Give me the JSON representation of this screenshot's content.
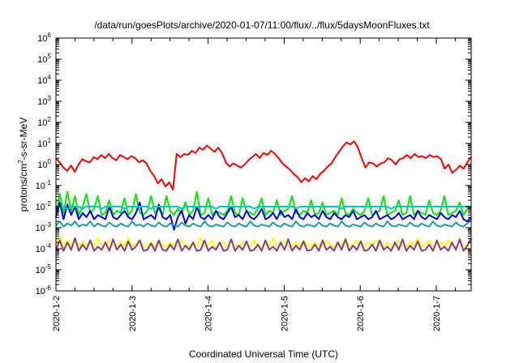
{
  "chart_data": {
    "type": "line",
    "title": "/data/run/goesPlots/archive/2020-01-07/11:00/flux/../flux/5daysMoonFluxes.txt",
    "xlabel": "Coordinated Universal Time (UTC)",
    "ylabel_parts": {
      "pre": "protons/cm",
      "sup": "2",
      "post": "-s-sr-MeV"
    },
    "y_scale": "log",
    "ylim_exponents": [
      -6,
      6
    ],
    "y_ticks": [
      {
        "base": "10",
        "exp": "6"
      },
      {
        "base": "10",
        "exp": "5"
      },
      {
        "base": "10",
        "exp": "4"
      },
      {
        "base": "10",
        "exp": "3"
      },
      {
        "base": "10",
        "exp": "2"
      },
      {
        "base": "10",
        "exp": "1"
      },
      {
        "base": "10",
        "exp": "0"
      },
      {
        "base": "10",
        "exp": "-1"
      },
      {
        "base": "10",
        "exp": "-2"
      },
      {
        "base": "10",
        "exp": "-3"
      },
      {
        "base": "10",
        "exp": "-4"
      },
      {
        "base": "10",
        "exp": "-5"
      },
      {
        "base": "10",
        "exp": "-6"
      }
    ],
    "x_range_days": [
      "2020-01-02",
      "2020-01-07 11:00"
    ],
    "x_ticks": [
      "2020-1-2",
      "2020-1-3",
      "2020-1-4",
      "2020-1-5",
      "2020-1-6",
      "2020-1-7"
    ],
    "grid": false,
    "legend": "none",
    "series": [
      {
        "color": "#ff0000",
        "values_log10": [
          0.3,
          0.1,
          -0.15,
          -0.3,
          -0.05,
          -0.35,
          0.0,
          0.25,
          0.15,
          0.1,
          0.35,
          0.25,
          0.45,
          0.3,
          0.5,
          0.3,
          0.2,
          0.45,
          0.35,
          0.25,
          0.4,
          0.3,
          0.1,
          0.2,
          0.05,
          -0.3,
          -0.55,
          -0.9,
          -0.7,
          -1.05,
          -0.85,
          -1.2,
          0.5,
          0.35,
          0.5,
          0.45,
          0.65,
          0.55,
          0.8,
          0.7,
          0.9,
          0.75,
          0.6,
          0.8,
          0.55,
          0.1,
          -0.1,
          0.05,
          -0.05,
          -0.15,
          0.0,
          0.2,
          0.35,
          0.5,
          0.3,
          0.55,
          0.45,
          0.65,
          0.5,
          0.3,
          0.05,
          -0.1,
          -0.25,
          -0.45,
          -0.6,
          -0.85,
          -0.65,
          -0.8,
          -0.55,
          -0.7,
          -0.45,
          -0.3,
          -0.1,
          0.05,
          0.35,
          0.6,
          0.85,
          1.05,
          0.95,
          1.1,
          0.8,
          0.3,
          -0.15,
          0.1,
          0.05,
          -0.1,
          0.05,
          0.1,
          0.3,
          0.2,
          0.0,
          0.25,
          0.3,
          0.45,
          0.3,
          0.5,
          0.35,
          0.4,
          0.3,
          0.45,
          0.35,
          0.4,
          0.25,
          -0.2,
          0.0,
          -0.4,
          -0.25,
          -0.05,
          -0.2,
          0.1,
          0.35
        ]
      },
      {
        "color": "#00ee00",
        "values_log10": [
          -2.4,
          -1.4,
          -2.3,
          -1.3,
          -2.2,
          -1.5,
          -2.4,
          -2.0,
          -1.4,
          -2.3,
          -2.1,
          -1.5,
          -2.4,
          -2.3,
          -1.7,
          -2.4,
          -2.2,
          -2.3,
          -1.6,
          -2.4,
          -2.2,
          -1.4,
          -2.3,
          -2.4,
          -2.2,
          -1.5,
          -2.3,
          -2.1,
          -2.4,
          -1.5,
          -2.2,
          -2.4,
          -2.1,
          -2.3,
          -1.8,
          -2.4,
          -2.2,
          -1.3,
          -2.4,
          -2.3,
          -1.6,
          -2.4,
          -2.2,
          -2.3,
          -2.4,
          -2.2,
          -1.5,
          -2.3,
          -2.4,
          -1.6,
          -2.2,
          -2.3,
          -2.4,
          -2.1,
          -1.6,
          -2.4,
          -2.2,
          -2.3,
          -1.7,
          -2.4,
          -2.2,
          -2.1,
          -1.5,
          -2.3,
          -2.4,
          -2.2,
          -2.3,
          -1.7,
          -2.4,
          -2.3,
          -1.8,
          -2.4,
          -2.3,
          -2.2,
          -2.4,
          -1.6,
          -2.3,
          -2.4,
          -2.1,
          -2.3,
          -2.4,
          -2.2,
          -1.6,
          -2.4,
          -2.3,
          -2.2,
          -1.5,
          -2.4,
          -2.3,
          -2.2,
          -1.7,
          -2.4,
          -2.3,
          -1.5,
          -2.4,
          -2.2,
          -2.3,
          -2.4,
          -1.7,
          -2.3,
          -2.4,
          -2.2,
          -1.5,
          -2.4,
          -2.3,
          -2.2,
          -1.8,
          -2.4,
          -2.1,
          -2.0
        ]
      },
      {
        "color": "#0000ee",
        "values_log10": [
          -2.5,
          -1.8,
          -2.6,
          -1.9,
          -2.4,
          -2.0,
          -2.6,
          -2.3,
          -2.5,
          -2.2,
          -2.6,
          -2.4,
          -2.5,
          -2.6,
          -2.0,
          -2.5,
          -2.6,
          -2.4,
          -2.2,
          -2.5,
          -2.6,
          -2.3,
          -1.8,
          -2.6,
          -2.5,
          -2.4,
          -2.6,
          -1.9,
          -2.5,
          -2.6,
          -2.4,
          -3.1,
          -2.5,
          -2.2,
          -2.8,
          -2.4,
          -2.6,
          -2.0,
          -2.5,
          -2.6,
          -2.4,
          -2.6,
          -2.2,
          -2.5,
          -2.6,
          -2.3,
          -2.0,
          -2.5,
          -2.4,
          -2.6,
          -2.2,
          -2.5,
          -2.6,
          -2.4,
          -2.1,
          -2.6,
          -2.5,
          -2.3,
          -2.6,
          -2.2,
          -2.5,
          -2.4,
          -2.6,
          -2.1,
          -2.5,
          -2.6,
          -2.3,
          -2.5,
          -2.4,
          -2.6,
          -2.2,
          -2.5,
          -2.6,
          -2.3,
          -2.5,
          -2.6,
          -2.4,
          -2.5,
          -2.2,
          -2.6,
          -2.5,
          -2.4,
          -2.6,
          -2.5,
          -2.2,
          -2.6,
          -2.5,
          -2.4,
          -2.6,
          -2.5,
          -2.3,
          -2.6,
          -2.5,
          -2.4,
          -2.6,
          -2.2,
          -2.5,
          -2.6,
          -2.4,
          -2.5,
          -2.6,
          -2.3,
          -2.5,
          -2.6,
          -2.4,
          -2.5,
          -2.2,
          -2.6,
          -2.7,
          -2.5
        ]
      },
      {
        "color": "#00c8c8",
        "values_log10": [
          -2.0,
          -2.0,
          -2.0,
          -2.1,
          -2.0,
          -2.0,
          -2.0,
          -2.1,
          -2.0,
          -2.0,
          -2.0,
          -2.0,
          -2.1,
          -2.0,
          -2.0,
          -2.0,
          -2.0,
          -2.0,
          -2.1,
          -2.0,
          -2.0,
          -2.0,
          -2.0,
          -2.0,
          -2.0,
          -2.1,
          -2.0,
          -2.0,
          -2.0,
          -2.0,
          -2.0,
          -2.0,
          -2.0,
          -2.1,
          -2.0,
          -2.0,
          -2.0,
          -2.0,
          -2.0,
          -2.0,
          -2.0,
          -2.0,
          -2.1,
          -2.0,
          -2.0,
          -2.0,
          -2.0,
          -2.0,
          -2.0,
          -2.0,
          -2.0,
          -2.0,
          -2.1,
          -2.0,
          -2.0,
          -2.0,
          -2.0,
          -2.0,
          -2.0,
          -2.0,
          -2.0,
          -2.0,
          -2.0,
          -2.1,
          -2.0,
          -2.0,
          -2.0,
          -2.0,
          -2.0,
          -2.0,
          -2.0,
          -2.0,
          -2.0,
          -2.0,
          -2.0,
          -2.1,
          -2.0,
          -2.0,
          -2.0,
          -2.0,
          -2.0,
          -2.0,
          -2.0,
          -2.0,
          -2.0,
          -2.0,
          -2.0,
          -2.0,
          -2.1,
          -2.0,
          -2.0,
          -2.0,
          -2.0,
          -2.0,
          -2.0,
          -2.0,
          -2.0,
          -2.0,
          -2.0,
          -2.0,
          -2.0,
          -2.0,
          -2.0,
          -2.0,
          -2.0,
          -2.0,
          -2.0,
          -2.0,
          -2.0,
          -2.0
        ]
      },
      {
        "color": "#1a9e9e",
        "values_log10": [
          -2.9,
          -2.7,
          -2.95,
          -2.8,
          -2.9,
          -2.7,
          -2.95,
          -2.85,
          -2.9,
          -2.7,
          -2.95,
          -2.8,
          -2.9,
          -2.95,
          -2.75,
          -2.9,
          -2.95,
          -2.8,
          -2.9,
          -2.95,
          -2.7,
          -2.9,
          -2.85,
          -2.95,
          -2.8,
          -2.9,
          -2.95,
          -2.75,
          -2.9,
          -2.95,
          -2.8,
          -2.9,
          -2.95,
          -2.75,
          -2.9,
          -2.95,
          -2.8,
          -2.9,
          -2.95,
          -2.7,
          -2.9,
          -2.95,
          -2.85,
          -2.9,
          -2.95,
          -2.75,
          -2.9,
          -2.95,
          -2.8,
          -2.9,
          -2.95,
          -2.7,
          -2.9,
          -2.95,
          -2.85,
          -2.9,
          -2.95,
          -2.75,
          -2.9,
          -2.95,
          -2.8,
          -2.9,
          -2.95,
          -2.7,
          -2.9,
          -2.95,
          -2.85,
          -2.9,
          -2.95,
          -2.75,
          -2.9,
          -2.95,
          -2.8,
          -2.9,
          -2.95,
          -2.7,
          -2.9,
          -2.95,
          -2.85,
          -2.9,
          -2.95,
          -2.75,
          -2.9,
          -2.95,
          -2.8,
          -2.9,
          -2.95,
          -2.7,
          -2.9,
          -2.95,
          -2.85,
          -2.9,
          -2.95,
          -2.75,
          -2.9,
          -2.95,
          -2.8,
          -2.9,
          -2.95,
          -2.7,
          -2.9,
          -2.95,
          -2.85,
          -2.9,
          -2.95,
          -2.75,
          -2.9,
          -2.95,
          -2.8,
          -2.6
        ]
      },
      {
        "color": "#ffff00",
        "values_log10": [
          -3.8,
          -3.4,
          -3.9,
          -3.6,
          -3.85,
          -3.5,
          -3.9,
          -3.7,
          -3.85,
          -3.6,
          -3.9,
          -3.5,
          -3.85,
          -3.9,
          -3.6,
          -3.85,
          -3.9,
          -3.7,
          -3.85,
          -3.5,
          -3.9,
          -3.8,
          -3.6,
          -3.9,
          -3.85,
          -3.7,
          -3.9,
          -3.6,
          -3.85,
          -3.9,
          -3.7,
          -3.85,
          -3.9,
          -3.6,
          -3.85,
          -3.9,
          -3.7,
          -3.85,
          -3.5,
          -3.9,
          -3.8,
          -3.6,
          -3.9,
          -3.85,
          -3.7,
          -3.9,
          -3.6,
          -3.85,
          -3.9,
          -3.7,
          -3.85,
          -3.9,
          -3.6,
          -3.85,
          -3.9,
          -3.7,
          -3.85,
          -3.5,
          -3.9,
          -3.8,
          -3.6,
          -3.9,
          -3.85,
          -3.7,
          -3.9,
          -3.6,
          -3.85,
          -3.9,
          -3.7,
          -3.85,
          -3.9,
          -3.6,
          -3.85,
          -3.9,
          -3.7,
          -3.85,
          -3.5,
          -3.9,
          -3.8,
          -3.6,
          -3.9,
          -3.85,
          -3.7,
          -3.9,
          -3.6,
          -3.85,
          -3.9,
          -3.7,
          -3.85,
          -3.9,
          -3.6,
          -3.85,
          -3.9,
          -3.7,
          -3.85,
          -3.5,
          -3.9,
          -3.8,
          -3.6,
          -3.9,
          -3.85,
          -3.7,
          -3.9,
          -3.6,
          -3.85,
          -3.9,
          -3.7,
          -3.85,
          -3.9,
          -3.6
        ]
      },
      {
        "color": "#8b3a8b",
        "values_log10": [
          -4.05,
          -3.6,
          -4.1,
          -3.7,
          -4.05,
          -3.5,
          -4.1,
          -3.8,
          -4.05,
          -3.6,
          -4.1,
          -3.9,
          -4.05,
          -3.7,
          -4.1,
          -3.55,
          -4.05,
          -3.8,
          -4.1,
          -3.65,
          -4.05,
          -3.9,
          -3.6,
          -4.1,
          -4.05,
          -3.75,
          -4.1,
          -3.6,
          -4.05,
          -4.1,
          -3.8,
          -4.05,
          -3.55,
          -4.1,
          -3.85,
          -4.05,
          -3.7,
          -4.1,
          -4.05,
          -3.6,
          -4.1,
          -3.9,
          -4.05,
          -3.7,
          -4.1,
          -4.05,
          -3.55,
          -4.1,
          -3.85,
          -4.05,
          -3.65,
          -4.1,
          -4.05,
          -3.8,
          -4.1,
          -3.6,
          -4.05,
          -3.9,
          -4.1,
          -3.7,
          -4.05,
          -3.55,
          -4.1,
          -3.85,
          -4.05,
          -3.65,
          -4.1,
          -4.05,
          -3.8,
          -4.1,
          -3.6,
          -4.05,
          -3.9,
          -4.1,
          -3.7,
          -4.05,
          -3.55,
          -4.1,
          -3.85,
          -4.05,
          -3.65,
          -4.1,
          -4.05,
          -3.8,
          -4.1,
          -3.6,
          -4.05,
          -3.9,
          -4.1,
          -3.7,
          -4.05,
          -3.55,
          -4.1,
          -3.85,
          -4.05,
          -3.65,
          -4.1,
          -4.05,
          -3.8,
          -4.1,
          -3.6,
          -4.05,
          -3.9,
          -4.1,
          -3.7,
          -4.05,
          -3.55,
          -4.1,
          -3.85,
          -3.5
        ]
      }
    ]
  }
}
